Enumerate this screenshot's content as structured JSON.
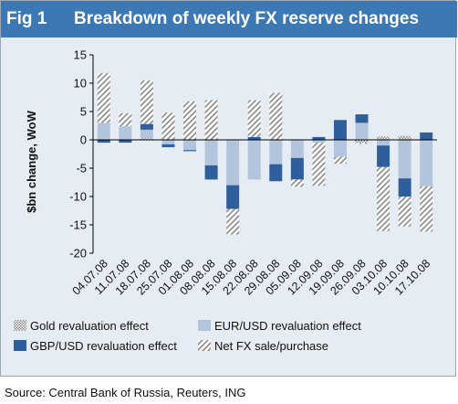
{
  "header": {
    "fig_label": "Fig 1",
    "title": "Breakdown of weekly FX reserve changes"
  },
  "source": "Source: Central Bank of Russia, Reuters, ING",
  "colors": {
    "title_bg": "#3c79b4",
    "panel_bg": "#e6ecf3",
    "eur_usd": "#b3c4dd",
    "gbp_usd": "#2e5f9c",
    "gold": "#9a9a9a",
    "net_fx": "#8a8a8a"
  },
  "chart_data": {
    "type": "bar",
    "stacked": true,
    "ylabel": "$bn change, WoW",
    "ylim": [
      -20,
      15
    ],
    "yticks": [
      15,
      10,
      5,
      0,
      -5,
      -10,
      -15,
      -20
    ],
    "grid": false,
    "legend_position": "bottom",
    "categories": [
      "04.07.08",
      "11.07.08",
      "18.07.08",
      "25.07.08",
      "01.08.08",
      "08.08.08",
      "15.08.08",
      "22.08.08",
      "29.08.08",
      "05.09.08",
      "12.09.08",
      "19.09.08",
      "26.09.08",
      "03.10.08",
      "10.10.08",
      "17.10.08"
    ],
    "series": [
      {
        "name": "Gold revaluation effect",
        "pattern": "dots",
        "values": [
          0.2,
          0.1,
          0.3,
          0,
          0,
          0,
          -0.2,
          0,
          0,
          0,
          0,
          0,
          -0.5,
          0.6,
          0.7,
          0
        ]
      },
      {
        "name": "EUR/USD revaluation effect",
        "pattern": "solid",
        "values": [
          2.8,
          2.3,
          1.5,
          -0.8,
          -1.8,
          -4.5,
          -7.8,
          -7,
          -4.3,
          -3.2,
          -0.5,
          -3,
          3,
          -1,
          -6.8,
          -8.2
        ]
      },
      {
        "name": "GBP/USD revaluation effect",
        "pattern": "solid-dark",
        "values": [
          -0.5,
          -0.5,
          1.0,
          -0.5,
          -0.2,
          -2.5,
          -4.2,
          0.5,
          -3,
          -3.8,
          0.5,
          3.5,
          1.5,
          -3.8,
          -3.2,
          1.3
        ]
      },
      {
        "name": "Net FX sale/purchase",
        "pattern": "hatch",
        "values": [
          8.8,
          2.3,
          7.7,
          4.8,
          6.8,
          7,
          -4.5,
          6.5,
          8.3,
          -1.3,
          -7.6,
          -1.2,
          -0.2,
          -11.3,
          -5.3,
          -8
        ]
      }
    ]
  }
}
